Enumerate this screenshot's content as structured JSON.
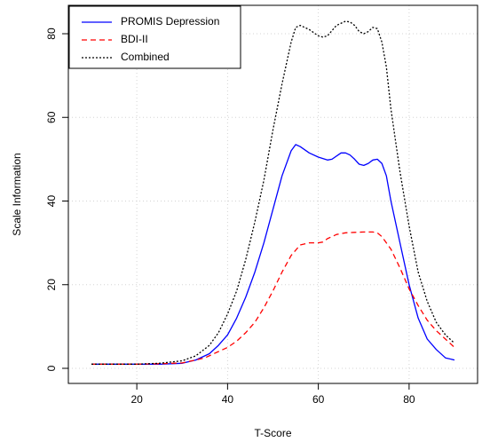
{
  "chart_data": {
    "type": "line",
    "title": "",
    "xlabel": "T-Score",
    "ylabel": "Scale Information",
    "xlim": [
      10,
      90
    ],
    "ylim": [
      0,
      85
    ],
    "xticks": [
      20,
      40,
      60,
      80
    ],
    "yticks": [
      0,
      20,
      40,
      60,
      80
    ],
    "xtick_labels": [
      "20",
      "40",
      "60",
      "80"
    ],
    "ytick_labels": [
      "0",
      "20",
      "40",
      "60",
      "80"
    ],
    "grid": true,
    "legend_position": "top-left",
    "series": [
      {
        "name": "PROMIS Depression",
        "color": "#0000ff",
        "dash": "solid",
        "points": [
          [
            10,
            1
          ],
          [
            20,
            1
          ],
          [
            25,
            1
          ],
          [
            30,
            1.2
          ],
          [
            33,
            2
          ],
          [
            36,
            3.5
          ],
          [
            38,
            5.5
          ],
          [
            40,
            8
          ],
          [
            42,
            12
          ],
          [
            44,
            17
          ],
          [
            46,
            23
          ],
          [
            48,
            30
          ],
          [
            50,
            38
          ],
          [
            52,
            46
          ],
          [
            54,
            52
          ],
          [
            55,
            53.5
          ],
          [
            56,
            53
          ],
          [
            58,
            51.5
          ],
          [
            60,
            50.5
          ],
          [
            62,
            49.8
          ],
          [
            63,
            50
          ],
          [
            65,
            51.5
          ],
          [
            66,
            51.5
          ],
          [
            67,
            51
          ],
          [
            68,
            50
          ],
          [
            69,
            48.8
          ],
          [
            70,
            48.5
          ],
          [
            71,
            49
          ],
          [
            72,
            49.8
          ],
          [
            73,
            50
          ],
          [
            74,
            49
          ],
          [
            75,
            46
          ],
          [
            76,
            40
          ],
          [
            78,
            30
          ],
          [
            80,
            20
          ],
          [
            82,
            12
          ],
          [
            84,
            7
          ],
          [
            86,
            4.5
          ],
          [
            88,
            2.5
          ],
          [
            90,
            2
          ]
        ]
      },
      {
        "name": "BDI-II",
        "color": "#ff0000",
        "dash": "dashed",
        "points": [
          [
            10,
            1
          ],
          [
            20,
            1
          ],
          [
            25,
            1.1
          ],
          [
            30,
            1.3
          ],
          [
            33,
            2
          ],
          [
            35,
            2.5
          ],
          [
            38,
            4
          ],
          [
            40,
            5
          ],
          [
            42,
            6.5
          ],
          [
            44,
            8.5
          ],
          [
            46,
            11
          ],
          [
            48,
            14.5
          ],
          [
            50,
            18.5
          ],
          [
            52,
            23
          ],
          [
            54,
            27
          ],
          [
            56,
            29.5
          ],
          [
            58,
            30
          ],
          [
            60,
            30
          ],
          [
            61,
            30.2
          ],
          [
            62,
            31
          ],
          [
            64,
            32
          ],
          [
            66,
            32.4
          ],
          [
            68,
            32.5
          ],
          [
            70,
            32.6
          ],
          [
            72,
            32.6
          ],
          [
            73,
            32.4
          ],
          [
            74,
            31.5
          ],
          [
            76,
            28.5
          ],
          [
            78,
            24
          ],
          [
            80,
            19
          ],
          [
            82,
            15
          ],
          [
            84,
            11.5
          ],
          [
            86,
            9
          ],
          [
            88,
            7
          ],
          [
            90,
            5
          ]
        ]
      },
      {
        "name": "Combined",
        "color": "#000000",
        "dash": "dotted",
        "points": [
          [
            10,
            1
          ],
          [
            20,
            1
          ],
          [
            25,
            1.2
          ],
          [
            30,
            1.8
          ],
          [
            33,
            3
          ],
          [
            36,
            5.5
          ],
          [
            38,
            8.5
          ],
          [
            40,
            13
          ],
          [
            42,
            18.5
          ],
          [
            44,
            26
          ],
          [
            46,
            35
          ],
          [
            48,
            45
          ],
          [
            50,
            57
          ],
          [
            52,
            68
          ],
          [
            54,
            78
          ],
          [
            55,
            81.5
          ],
          [
            56,
            82
          ],
          [
            58,
            81
          ],
          [
            60,
            79.5
          ],
          [
            61,
            79.2
          ],
          [
            62,
            79.5
          ],
          [
            64,
            82
          ],
          [
            66,
            83
          ],
          [
            67,
            82.8
          ],
          [
            68,
            82
          ],
          [
            69,
            80.5
          ],
          [
            70,
            80
          ],
          [
            71,
            80.5
          ],
          [
            72,
            81.5
          ],
          [
            73,
            81.2
          ],
          [
            74,
            78
          ],
          [
            75,
            72
          ],
          [
            76,
            62
          ],
          [
            78,
            47
          ],
          [
            80,
            34
          ],
          [
            82,
            23
          ],
          [
            84,
            16
          ],
          [
            86,
            11
          ],
          [
            88,
            8
          ],
          [
            90,
            6
          ]
        ]
      }
    ]
  }
}
